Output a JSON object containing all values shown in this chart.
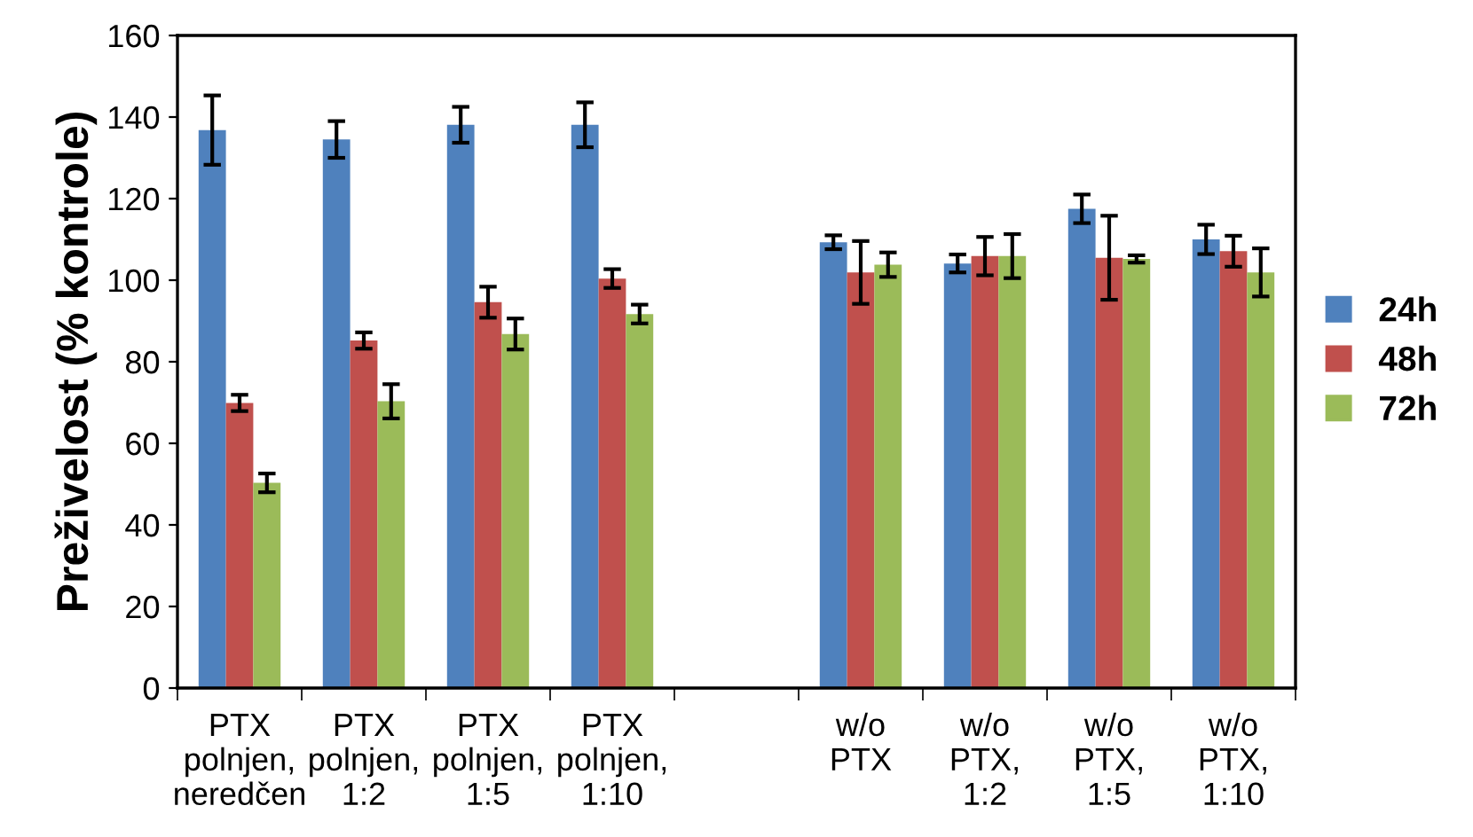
{
  "chart_data": {
    "type": "bar",
    "ylabel": "Preživelost (% kontrole)",
    "categories": [
      "PTX\npolnjen,\nneredčen",
      "PTX\npolnjen,\n1:2",
      "PTX\npolnjen,\n1:5",
      "PTX\npolnjen,\n1:10",
      null,
      "w/o\nPTX",
      "w/o\nPTX,\n1:2",
      "w/o\nPTX,\n1:5",
      "w/o\nPTX,\n1:10"
    ],
    "series": [
      {
        "name": "24h",
        "color": "#4f81bd",
        "values": [
          136.8,
          134.5,
          138.1,
          138.1,
          null,
          109.3,
          104.1,
          117.5,
          110.0
        ],
        "errors": [
          8.5,
          4.5,
          4.4,
          5.5,
          null,
          1.7,
          2.2,
          3.5,
          3.6
        ]
      },
      {
        "name": "48h",
        "color": "#c0504d",
        "values": [
          69.9,
          85.2,
          94.6,
          100.4,
          null,
          101.9,
          105.9,
          105.5,
          107.1
        ],
        "errors": [
          2.0,
          2.0,
          3.8,
          2.3,
          null,
          7.7,
          4.7,
          10.3,
          3.8
        ]
      },
      {
        "name": "72h",
        "color": "#9bbb59",
        "values": [
          50.3,
          70.3,
          86.8,
          91.7,
          null,
          103.8,
          105.9,
          105.2,
          101.9
        ],
        "errors": [
          2.3,
          4.2,
          3.8,
          2.3,
          null,
          3.0,
          5.4,
          0.9,
          5.9
        ]
      }
    ],
    "ylim": [
      0,
      160
    ],
    "yticks": [
      0,
      20,
      40,
      60,
      80,
      100,
      120,
      140,
      160
    ],
    "grid": false,
    "legend": "right"
  }
}
